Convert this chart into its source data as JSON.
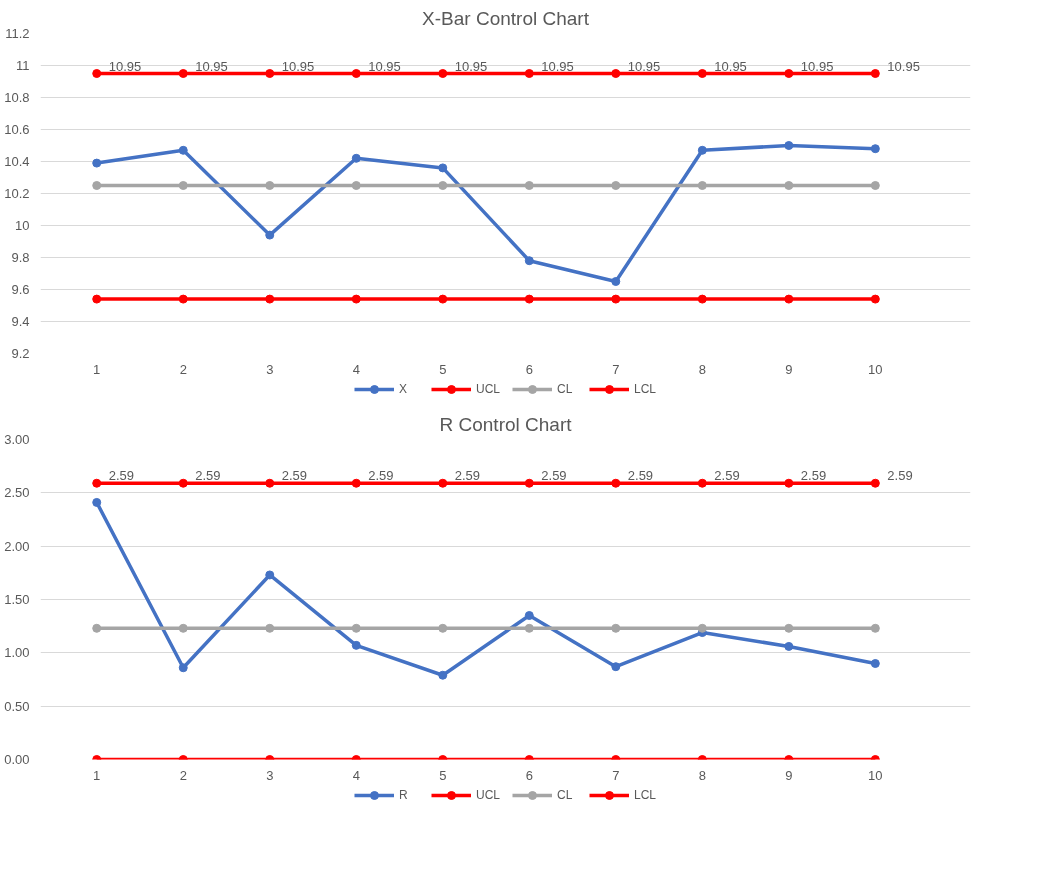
{
  "chart_data": [
    {
      "type": "line",
      "title": "X-Bar Control Chart",
      "categories": [
        "1",
        "2",
        "3",
        "4",
        "5",
        "6",
        "7",
        "8",
        "9",
        "10"
      ],
      "ylim": [
        9.2,
        11.2
      ],
      "yticks": [
        9.2,
        9.4,
        9.6,
        9.8,
        10,
        10.2,
        10.4,
        10.6,
        10.8,
        11,
        11.2
      ],
      "grid": "y",
      "legend": "bottom",
      "marker": "circle",
      "line_style": "solid",
      "series": [
        {
          "name": "X",
          "color": "#4472c4",
          "values": [
            10.39,
            10.47,
            9.94,
            10.42,
            10.36,
            9.78,
            9.65,
            10.47,
            10.5,
            10.48
          ]
        },
        {
          "name": "UCL",
          "color": "#ff0000",
          "values": [
            10.95,
            10.95,
            10.95,
            10.95,
            10.95,
            10.95,
            10.95,
            10.95,
            10.95,
            10.95
          ],
          "value_labels": [
            "10.95",
            "10.95",
            "10.95",
            "10.95",
            "10.95",
            "10.95",
            "10.95",
            "10.95",
            "10.95",
            "10.95"
          ]
        },
        {
          "name": "CL",
          "color": "#a5a5a5",
          "values": [
            10.25,
            10.25,
            10.25,
            10.25,
            10.25,
            10.25,
            10.25,
            10.25,
            10.25,
            10.25
          ]
        },
        {
          "name": "LCL",
          "color": "#ff0000",
          "values": [
            9.54,
            9.54,
            9.54,
            9.54,
            9.54,
            9.54,
            9.54,
            9.54,
            9.54,
            9.54
          ]
        }
      ]
    },
    {
      "type": "line",
      "title": "R Control Chart",
      "categories": [
        "1",
        "2",
        "3",
        "4",
        "5",
        "6",
        "7",
        "8",
        "9",
        "10"
      ],
      "ylim": [
        0,
        3
      ],
      "yticks": [
        {
          "value": 0,
          "label": "0.00"
        },
        {
          "value": 0.5,
          "label": "0.50"
        },
        {
          "value": 1,
          "label": "1.00"
        },
        {
          "value": 1.5,
          "label": "1.50"
        },
        {
          "value": 2,
          "label": "2.00"
        },
        {
          "value": 2.5,
          "label": "2.50"
        },
        {
          "value": 3,
          "label": "3.00"
        }
      ],
      "grid": "y",
      "legend": "bottom",
      "marker": "circle",
      "line_style": "solid",
      "series": [
        {
          "name": "R",
          "color": "#4472c4",
          "values": [
            2.41,
            0.86,
            1.73,
            1.07,
            0.79,
            1.35,
            0.87,
            1.19,
            1.06,
            0.9
          ]
        },
        {
          "name": "UCL",
          "color": "#ff0000",
          "values": [
            2.59,
            2.59,
            2.59,
            2.59,
            2.59,
            2.59,
            2.59,
            2.59,
            2.59,
            2.59
          ],
          "value_labels": [
            "2.59",
            "2.59",
            "2.59",
            "2.59",
            "2.59",
            "2.59",
            "2.59",
            "2.59",
            "2.59",
            "2.59"
          ]
        },
        {
          "name": "CL",
          "color": "#a5a5a5",
          "values": [
            1.23,
            1.23,
            1.23,
            1.23,
            1.23,
            1.23,
            1.23,
            1.23,
            1.23,
            1.23
          ]
        },
        {
          "name": "LCL",
          "color": "#ff0000",
          "values": [
            0,
            0,
            0,
            0,
            0,
            0,
            0,
            0,
            0,
            0
          ]
        }
      ]
    }
  ]
}
